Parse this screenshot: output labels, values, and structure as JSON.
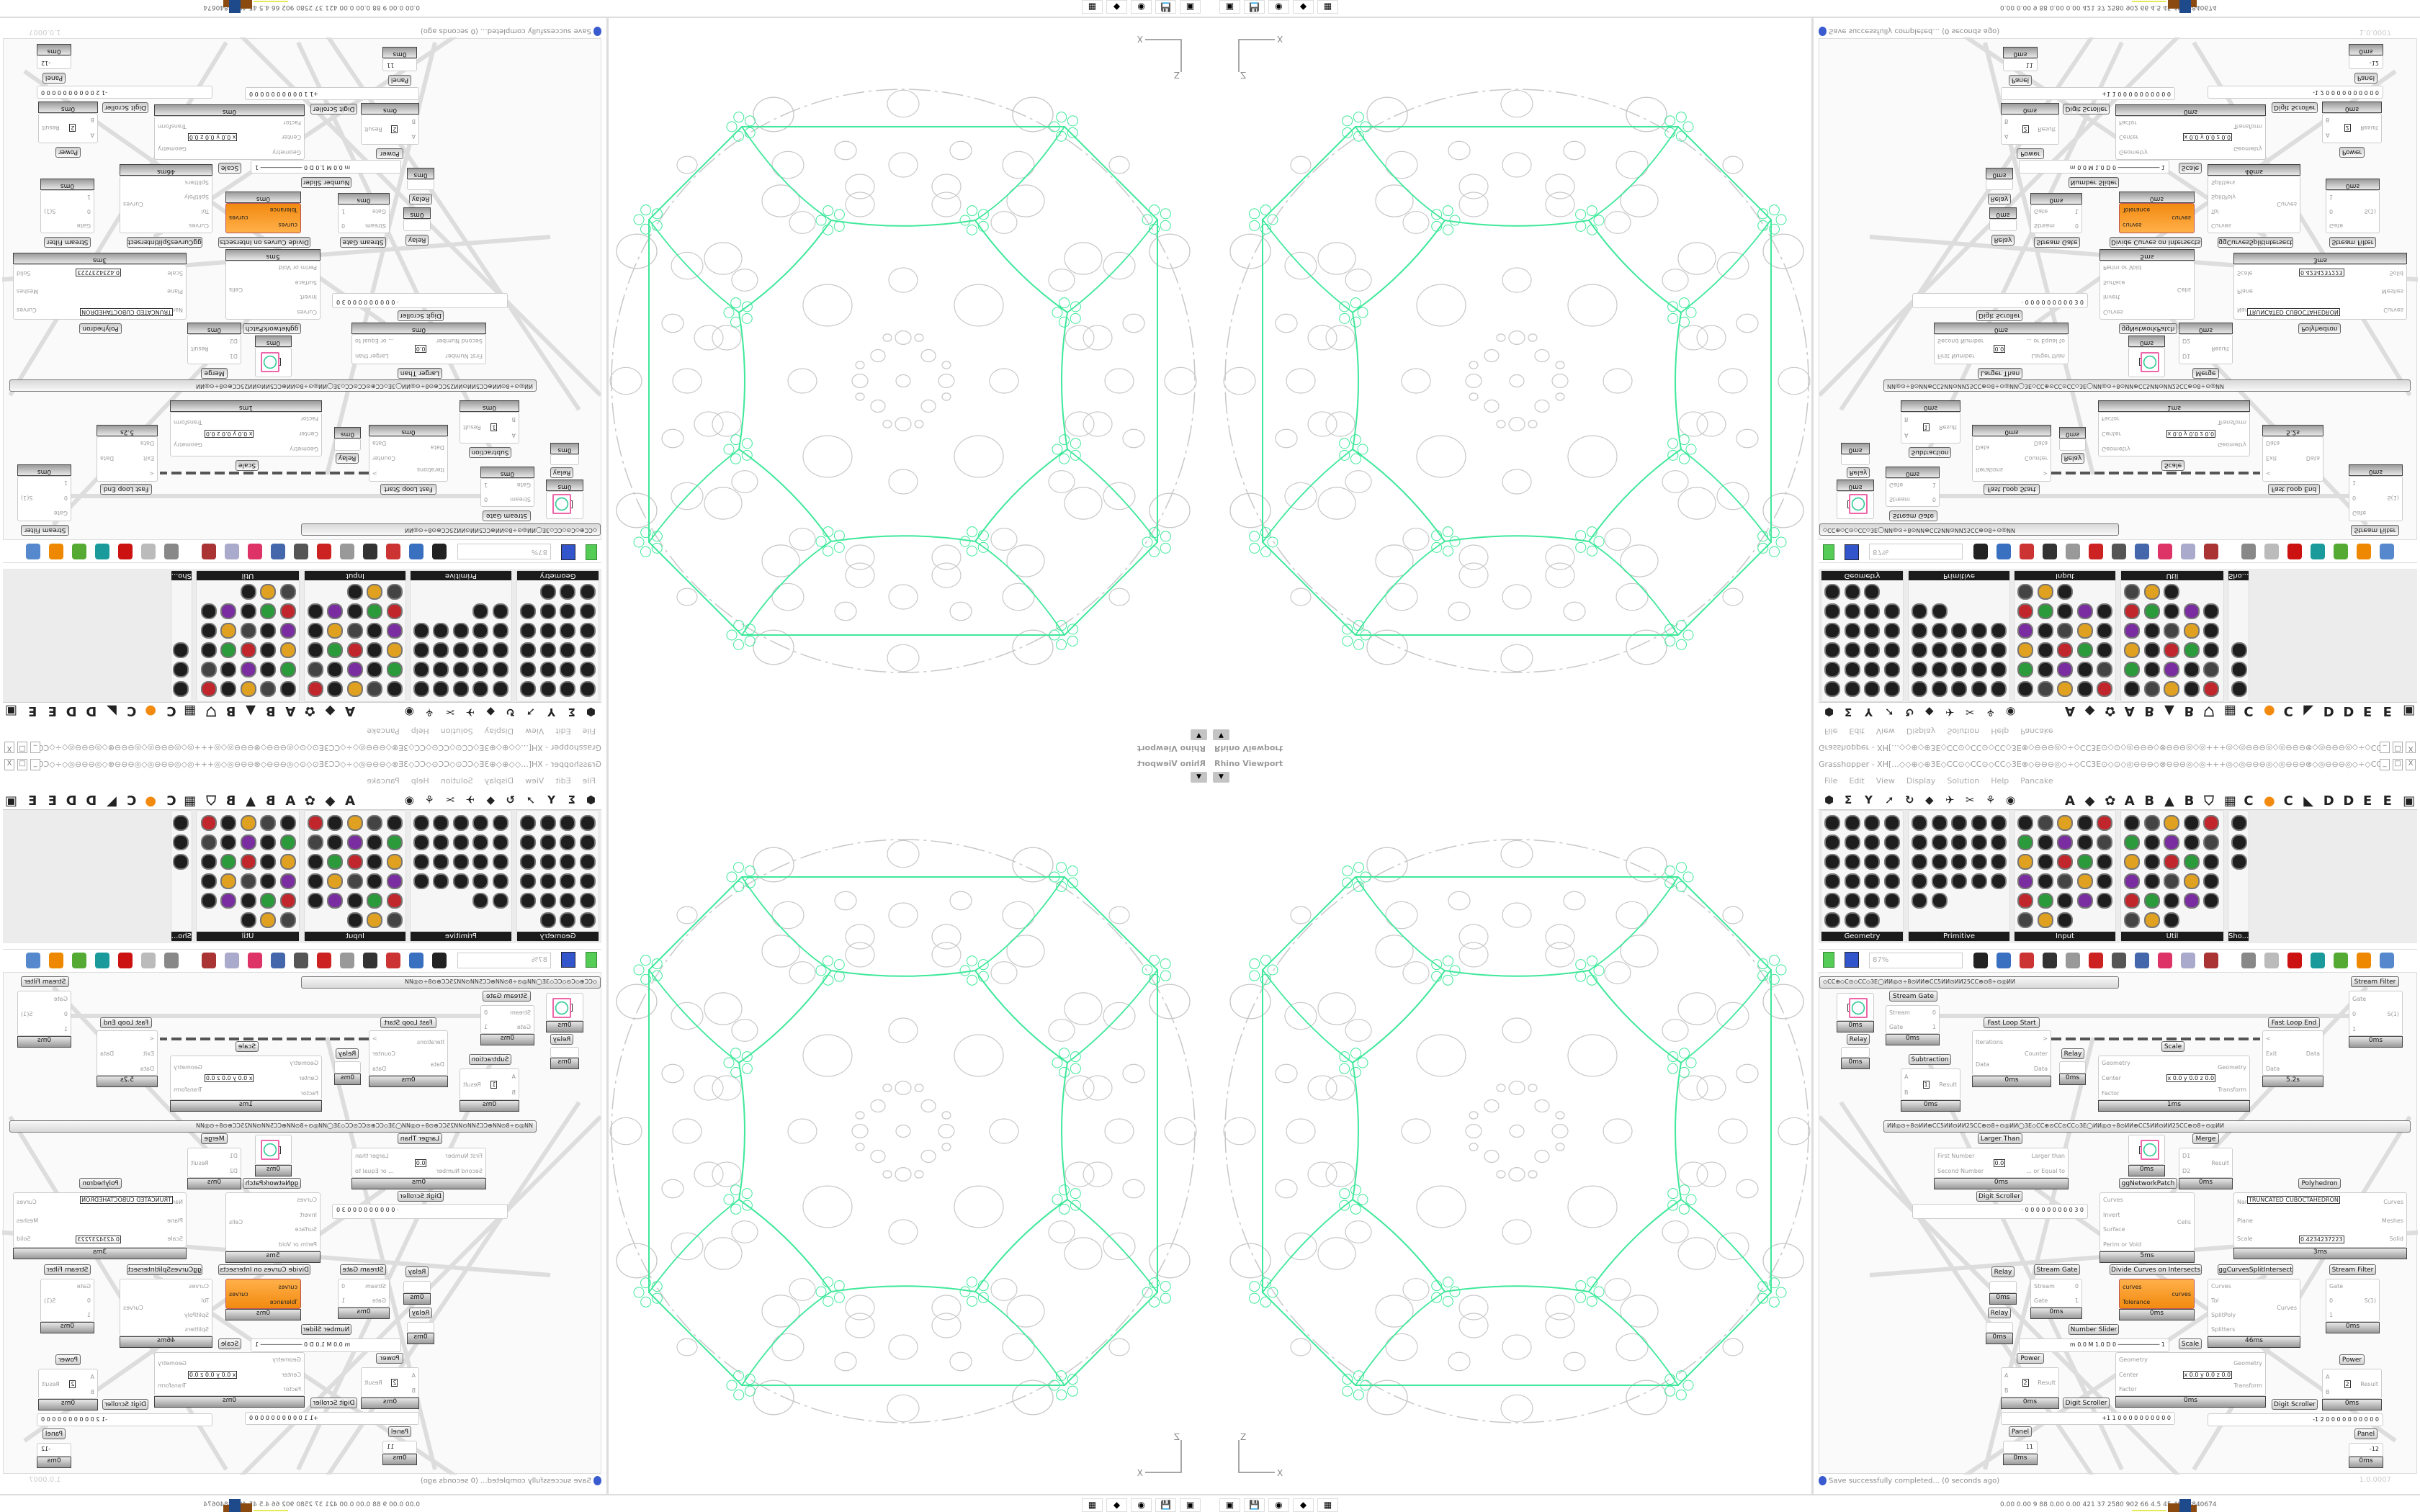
{
  "viewport": {
    "title": "Rhino Viewport",
    "axis_x": "X",
    "axis_z": "Z",
    "curve_color": "#3ee89a",
    "ghost_color": "#c8c8c8"
  },
  "taskbar": {
    "icons": [
      "grasshopper-app-icon",
      "floppy-64-icon",
      "firefox-icon",
      "rhino-icon",
      "calculator-icon"
    ],
    "icon_glyphs": [
      "▣",
      "💾",
      "◉",
      "◆",
      "▦"
    ],
    "stats": "0.00 0.00  9   88  0.00 0.00 421  37  2580 902  66  4.5  45  40  73840674"
  },
  "grasshopper": {
    "title": "Grasshopper - XH[...◇◇⊕◇⊕3E◇CC⊙◇CC⊙◇CC◇3E⊗◇⊖⊖⊖◎◇÷◇CC3E⊙◇⊙◇◎⊖⊖⊖◇⊗⊖⊖⊖◎◇◎+++◎◇◎⊖⊖⊖◎◇◎⊖⊖⊖⊗◇◎⊖⊖⊖◎◇÷◇CC3E⊙◇...",
    "window_controls": [
      "_",
      "□",
      "X"
    ],
    "menu": [
      "File",
      "Edit",
      "View",
      "Display",
      "Solution",
      "Help",
      "Pancake"
    ],
    "tab_symbols": [
      "⬢",
      "Σ",
      "Y",
      "➚",
      "↻",
      "◆",
      "✈",
      "✂",
      "⚘",
      "◉"
    ],
    "tab_letters": [
      "A",
      "◆",
      "✿",
      "A",
      "B",
      "▲",
      "B",
      "⛉",
      "▦",
      "C",
      "●",
      "C",
      "◣",
      "D",
      "D",
      "E",
      "E",
      "▣"
    ],
    "accent": "#f28a10",
    "panels": [
      "Geometry",
      "Primitive",
      "Input",
      "Util",
      "Sho..."
    ],
    "zoom_value": "87%",
    "group_labels": [
      "◇CC⊕◇C⊙◇CC◇3E◯ИИ◎⊙÷8⊙ИИ⊕CC5ИИ⊙ИИ25CC⊕⊙8÷⊙◎ИИ",
      "ИИ◎⊙÷8⊙ИИ⊕CC5ИИ⊙ИИ25CC⊕⊙8÷⊙◎ИИ◯3E◇CC⊕⊙CC⊙CC◇3E◯ИИ◎⊙÷8⊙ИИ⊕CC5ИИ⊙ИИ25CC⊕⊙8÷⊙◎ИИ"
    ],
    "nodes": [
      {
        "label": "",
        "inputs": [],
        "outputs": [],
        "value": "1",
        "time": "0ms"
      },
      {
        "label": "Relay",
        "inputs": [],
        "outputs": [],
        "time": "0ms"
      },
      {
        "label": "Stream Gate",
        "inputs": [
          "Stream",
          "Gate"
        ],
        "outputs": [
          "0",
          "1"
        ],
        "time": "0ms"
      },
      {
        "label": "Fast Loop Start",
        "inputs": [
          "Iterations",
          "Data"
        ],
        "outputs": [
          ">",
          "Counter",
          "Data"
        ],
        "time": "0ms"
      },
      {
        "label": "Subtraction",
        "inputs": [
          "A",
          "B"
        ],
        "outputs": [
          "Result"
        ],
        "value": "1",
        "time": "0ms"
      },
      {
        "label": "Relay",
        "inputs": [],
        "outputs": [],
        "time": "0ms"
      },
      {
        "label": "Scale",
        "inputs": [
          "Geometry",
          "Center",
          "Factor"
        ],
        "outputs": [
          "Geometry",
          "Transform"
        ],
        "value": "x 0.0 y 0.0 z 0.0",
        "time": "1ms"
      },
      {
        "label": "Fast Loop End",
        "inputs": [
          "<",
          "Exit",
          "Data"
        ],
        "outputs": [
          "Data"
        ],
        "time": "5.2s"
      },
      {
        "label": "Stream Filter",
        "inputs": [
          "Gate",
          "0",
          "1"
        ],
        "outputs": [
          "S(1)"
        ],
        "time": "0ms"
      },
      {
        "label": "Larger Than",
        "inputs": [
          "First Number",
          "Second Number"
        ],
        "outputs": [
          "Larger than",
          "... or Equal to"
        ],
        "value": "0.0",
        "time": "0ms"
      },
      {
        "label": "",
        "inputs": [],
        "outputs": [],
        "value": "1",
        "time": "0ms"
      },
      {
        "label": "Merge",
        "inputs": [
          "D1",
          "D2"
        ],
        "outputs": [
          "Result"
        ],
        "time": "0ms"
      },
      {
        "label": "Polyhedron",
        "inputs": [
          "Name",
          "Plane",
          "Scale"
        ],
        "outputs": [
          "Curves",
          "Meshes",
          "Solid"
        ],
        "value": "TRUNCATED CUBOCTAHEDRON",
        "value2": "0.4234237223",
        "time": "3ms"
      },
      {
        "label": "ggNetworkPatch",
        "inputs": [
          "Curves",
          "Invert",
          "Surface",
          "Perim or Void"
        ],
        "outputs": [
          "Cells"
        ],
        "time": "5ms"
      },
      {
        "label": "Digit Scroller",
        "inputs": [],
        "outputs": [],
        "value": "· 0 0 0 0 0 0 0 0 0 3 0",
        "time": ""
      },
      {
        "label": "Relay",
        "inputs": [],
        "outputs": [],
        "time": "0ms"
      },
      {
        "label": "Relay",
        "inputs": [],
        "outputs": [],
        "time": "0ms"
      },
      {
        "label": "Stream Gate",
        "inputs": [
          "Stream",
          "Gate"
        ],
        "outputs": [
          "0",
          "1"
        ],
        "time": "0ms"
      },
      {
        "label": "Divide Curves on Intersects",
        "inputs": [
          "curves",
          "Tolerance"
        ],
        "outputs": [
          "curves"
        ],
        "time": "0ms"
      },
      {
        "label": "ggCurvesSplitIntersect",
        "inputs": [
          "Curves",
          "Tol",
          "SplitPoly",
          "Splitters"
        ],
        "outputs": [
          "Curves"
        ],
        "time": "46ms"
      },
      {
        "label": "Stream Filter",
        "inputs": [
          "Gate",
          "0",
          "1"
        ],
        "outputs": [
          "S(1)"
        ],
        "time": "0ms"
      },
      {
        "label": "Number Slider",
        "inputs": [],
        "outputs": [],
        "value": "m 0.0  M 1.0  D 0   ──────────── 1",
        "time": ""
      },
      {
        "label": "Scale",
        "inputs": [
          "Geometry",
          "Center",
          "Factor"
        ],
        "outputs": [
          "Geometry",
          "Transform"
        ],
        "value": "x 0.0 y 0.0 z 0.0",
        "time": "0ms"
      },
      {
        "label": "Power",
        "inputs": [
          "A",
          "B"
        ],
        "outputs": [
          "Result"
        ],
        "value": "2",
        "time": "0ms"
      },
      {
        "label": "Digit Scroller",
        "inputs": [],
        "outputs": [],
        "value": "+1 1 0 0 0 0 0 0 0 0 0 0",
        "time": ""
      },
      {
        "label": "Digit Scroller",
        "inputs": [],
        "outputs": [],
        "value": "-1 2 0 0 0 0 0 0 0 0 0 0",
        "time": ""
      },
      {
        "label": "Power",
        "inputs": [
          "A",
          "B"
        ],
        "outputs": [
          "Result"
        ],
        "value": "2",
        "time": "0ms"
      },
      {
        "label": "Panel",
        "inputs": [],
        "outputs": [],
        "value": "11",
        "time": "0ms"
      },
      {
        "label": "Panel",
        "inputs": [],
        "outputs": [],
        "value": "-12",
        "time": "0ms"
      }
    ],
    "status": "Save successfully completed... (0 seconds ago)",
    "version": "1.0.0007"
  }
}
